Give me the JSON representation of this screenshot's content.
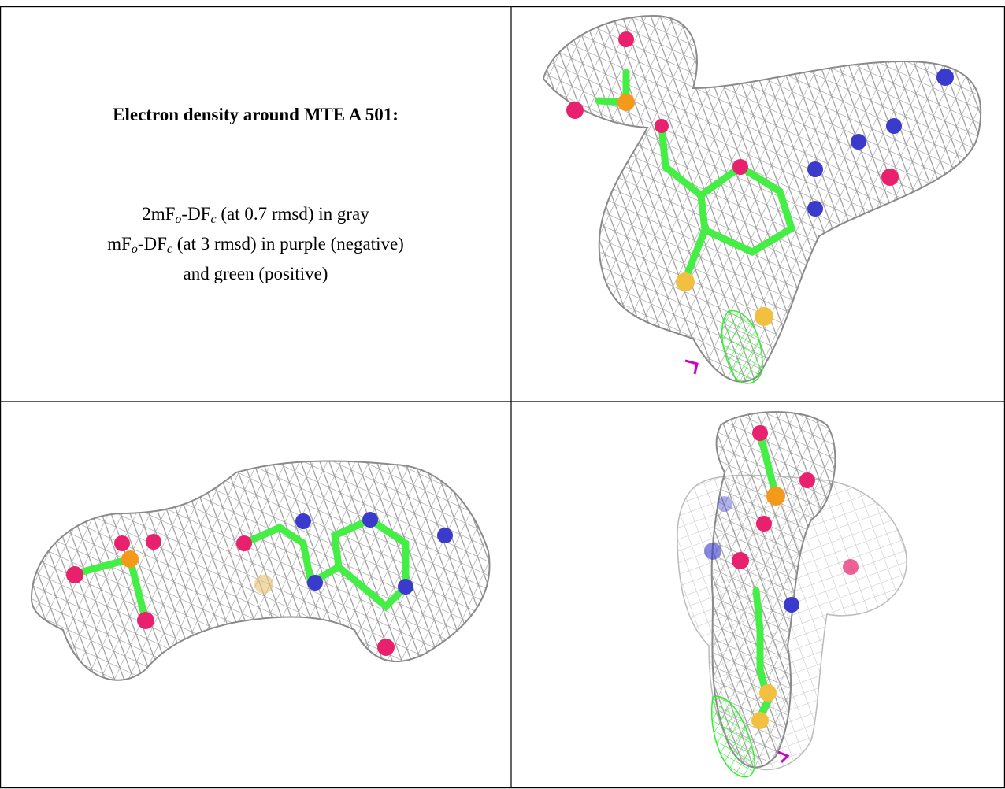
{
  "title": "Electron density around MTE A 501:",
  "caption": {
    "lines": [
      [
        "2mF",
        "o",
        "-DF",
        "c",
        " (at 0.7 rmsd) in gray"
      ],
      [
        "mF",
        "o",
        "-DF",
        "c",
        " (at 3 rmsd) in purple (negative)"
      ],
      [
        "and green (positive)"
      ]
    ]
  }
}
